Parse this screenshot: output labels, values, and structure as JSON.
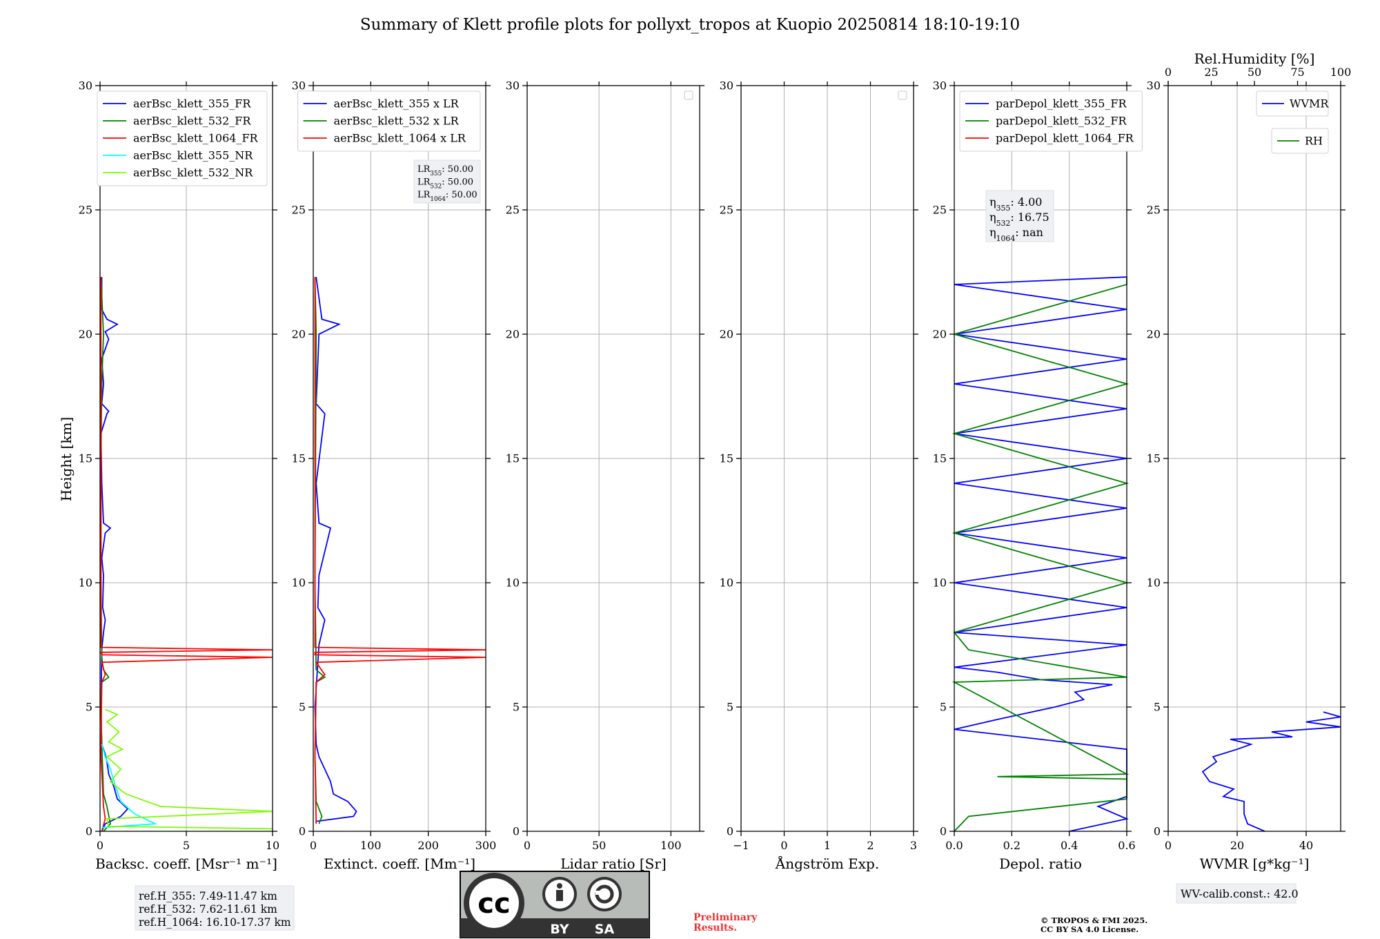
{
  "figure": {
    "title": "Summary of Klett profile plots for pollyxt_tropos at Kuopio 20250814 18:10-19:10",
    "ylabel": "Height [km]",
    "ref_heights": [
      "ref.H_355: 7.49-11.47 km",
      "ref.H_532: 7.62-11.61 km",
      "ref.H_1064: 16.10-17.37 km"
    ],
    "license_badge": {
      "left": "BY",
      "right": "SA"
    },
    "preliminary": [
      "Preliminary",
      "Results."
    ],
    "copyright": [
      "© TROPOS & FMI 2025.",
      "CC BY SA 4.0 License."
    ],
    "wv_calib": "WV-calib.const.: 42.0",
    "colors": {
      "c355": "#0000ff",
      "c532": "#008000",
      "c1064": "#ff0000",
      "c355nr": "#00ffff",
      "c532nr": "#7cfc00",
      "rh": "#008000"
    }
  },
  "chart_data": [
    {
      "type": "line",
      "id": "backscatter",
      "xlabel": "Backsc. coeff. [Msr⁻¹ m⁻¹]",
      "xlim": [
        0,
        10
      ],
      "xticks": [
        0,
        5,
        10
      ],
      "ylim": [
        0,
        30
      ],
      "yticks": [
        0,
        5,
        10,
        15,
        20,
        25,
        30
      ],
      "grid": true,
      "legend": "upper-right",
      "series": [
        {
          "name": "aerBsc_klett_355_FR",
          "color": "#0000ff",
          "points": [
            [
              0.1,
              0.0
            ],
            [
              0.3,
              0.3
            ],
            [
              1.2,
              0.6
            ],
            [
              1.6,
              0.9
            ],
            [
              1.0,
              1.3
            ],
            [
              0.8,
              1.8
            ],
            [
              0.5,
              2.3
            ],
            [
              0.4,
              2.8
            ],
            [
              0.3,
              3.1
            ],
            [
              0.1,
              3.5
            ],
            [
              0.05,
              5
            ],
            [
              0.1,
              7.3
            ],
            [
              0.2,
              8
            ],
            [
              0.3,
              8.5
            ],
            [
              0.15,
              9
            ],
            [
              0.2,
              10.3
            ],
            [
              0.1,
              11
            ],
            [
              0.3,
              12
            ],
            [
              0.6,
              12.2
            ],
            [
              0.2,
              12.4
            ],
            [
              0.1,
              14
            ],
            [
              0.05,
              16
            ],
            [
              0.4,
              16.8
            ],
            [
              0.5,
              16.9
            ],
            [
              0.1,
              17.2
            ],
            [
              0.2,
              18
            ],
            [
              0.1,
              19
            ],
            [
              0.5,
              19.8
            ],
            [
              0.3,
              20.1
            ],
            [
              1.0,
              20.4
            ],
            [
              0.4,
              20.6
            ],
            [
              0.1,
              21
            ],
            [
              0.1,
              22.3
            ]
          ]
        },
        {
          "name": "aerBsc_klett_532_FR",
          "color": "#008000",
          "points": [
            [
              0.2,
              0.0
            ],
            [
              0.6,
              0.3
            ],
            [
              0.4,
              1.0
            ],
            [
              0.2,
              1.5
            ],
            [
              0.15,
              2.5
            ],
            [
              0.1,
              3.5
            ],
            [
              0.05,
              5
            ],
            [
              0.1,
              6
            ],
            [
              0.5,
              6.2
            ],
            [
              0.2,
              6.5
            ],
            [
              0.1,
              7.0
            ],
            [
              0.05,
              10
            ],
            [
              0.05,
              15
            ],
            [
              0.1,
              18
            ],
            [
              0.2,
              20
            ],
            [
              0.05,
              22.3
            ]
          ]
        },
        {
          "name": "aerBsc_klett_1064_FR",
          "color": "#ff0000",
          "points": [
            [
              0.1,
              0.0
            ],
            [
              0.3,
              0.5
            ],
            [
              0.2,
              1.0
            ],
            [
              0.05,
              3
            ],
            [
              0.1,
              6.0
            ],
            [
              0.3,
              6.3
            ],
            [
              0.1,
              6.8
            ],
            [
              10,
              7.0
            ],
            [
              0.1,
              7.1
            ],
            [
              0.05,
              7.2
            ],
            [
              10,
              7.3
            ],
            [
              0.05,
              7.4
            ],
            [
              0.05,
              12
            ],
            [
              0.05,
              22.3
            ]
          ]
        },
        {
          "name": "aerBsc_klett_355_NR",
          "color": "#00ffff",
          "points": [
            [
              0.1,
              0.15
            ],
            [
              3.2,
              0.3
            ],
            [
              2.0,
              0.7
            ],
            [
              1.2,
              1.2
            ],
            [
              0.9,
              1.8
            ],
            [
              0.6,
              2.5
            ],
            [
              0.3,
              3.0
            ],
            [
              0.1,
              3.5
            ]
          ]
        },
        {
          "name": "aerBsc_klett_532_NR",
          "color": "#7cfc00",
          "points": [
            [
              10,
              0.1
            ],
            [
              0.5,
              0.2
            ],
            [
              0.4,
              0.5
            ],
            [
              10,
              0.8
            ],
            [
              3.5,
              1.0
            ],
            [
              1.5,
              1.5
            ],
            [
              0.6,
              2.0
            ],
            [
              1.2,
              2.5
            ],
            [
              0.4,
              3.0
            ],
            [
              1.3,
              3.3
            ],
            [
              0.5,
              3.6
            ],
            [
              1.1,
              4.0
            ],
            [
              0.4,
              4.4
            ],
            [
              1.0,
              4.7
            ],
            [
              0.3,
              4.9
            ]
          ]
        }
      ]
    },
    {
      "type": "line",
      "id": "extinction",
      "xlabel": "Extinct. coeff. [Mm⁻¹]",
      "xlim": [
        0,
        300
      ],
      "xticks": [
        0,
        100,
        200,
        300
      ],
      "ylim": [
        0,
        30
      ],
      "yticks": [
        0,
        5,
        10,
        15,
        20,
        25,
        30
      ],
      "grid": true,
      "legend": "upper-right",
      "annotation": [
        "LR355: 50.00",
        "LR532: 50.00",
        "LR1064: 50.00"
      ],
      "series": [
        {
          "name": "aerBsc_klett_355 x LR",
          "color": "#0000ff",
          "points": [
            [
              5,
              0.4
            ],
            [
              70,
              0.6
            ],
            [
              75,
              0.8
            ],
            [
              60,
              1.2
            ],
            [
              35,
              1.5
            ],
            [
              30,
              2.0
            ],
            [
              20,
              2.5
            ],
            [
              10,
              3.0
            ],
            [
              5,
              3.5
            ],
            [
              3,
              5
            ],
            [
              10,
              7.5
            ],
            [
              20,
              8.5
            ],
            [
              8,
              9
            ],
            [
              10,
              10.3
            ],
            [
              30,
              12.2
            ],
            [
              10,
              12.4
            ],
            [
              5,
              14
            ],
            [
              20,
              16.8
            ],
            [
              5,
              17.2
            ],
            [
              10,
              20
            ],
            [
              45,
              20.4
            ],
            [
              15,
              20.6
            ],
            [
              5,
              22.3
            ]
          ]
        },
        {
          "name": "aerBsc_klett_532 x LR",
          "color": "#008000",
          "points": [
            [
              10,
              0.3
            ],
            [
              15,
              0.6
            ],
            [
              5,
              1.2
            ],
            [
              3,
              3
            ],
            [
              5,
              6
            ],
            [
              20,
              6.2
            ],
            [
              5,
              6.5
            ],
            [
              3,
              10
            ],
            [
              5,
              20
            ],
            [
              3,
              22.3
            ]
          ]
        },
        {
          "name": "aerBsc_klett_1064 x LR",
          "color": "#ff0000",
          "points": [
            [
              5,
              0.3
            ],
            [
              3,
              3
            ],
            [
              5,
              6
            ],
            [
              20,
              6.3
            ],
            [
              5,
              6.8
            ],
            [
              300,
              7.0
            ],
            [
              3,
              7.1
            ],
            [
              3,
              7.2
            ],
            [
              300,
              7.3
            ],
            [
              3,
              7.4
            ],
            [
              3,
              22.3
            ]
          ]
        }
      ]
    },
    {
      "type": "line",
      "id": "lidar-ratio",
      "xlabel": "Lidar ratio [Sr]",
      "xlim": [
        0,
        120
      ],
      "xticks": [
        0,
        50,
        100
      ],
      "ylim": [
        0,
        30
      ],
      "yticks": [
        0,
        5,
        10,
        15,
        20,
        25,
        30
      ],
      "grid": true,
      "legend": "upper-right",
      "series": []
    },
    {
      "type": "line",
      "id": "angstrom",
      "xlabel": "Ångström Exp.",
      "xlim": [
        -1,
        3
      ],
      "xticks": [
        -1,
        0,
        1,
        2,
        3
      ],
      "ylim": [
        0,
        30
      ],
      "yticks": [
        0,
        5,
        10,
        15,
        20,
        25,
        30
      ],
      "grid": true,
      "legend": "upper-right",
      "series": []
    },
    {
      "type": "line",
      "id": "depol",
      "xlabel": "Depol. ratio",
      "xlim": [
        0,
        0.6
      ],
      "xticks": [
        "0.0",
        "0.2",
        "0.4",
        "0.6"
      ],
      "ylim": [
        0,
        30
      ],
      "yticks": [
        0,
        5,
        10,
        15,
        20,
        25,
        30
      ],
      "grid": true,
      "legend": "upper-left",
      "annotation": [
        "η355: 4.00",
        "η532: 16.75",
        "η1064: nan"
      ],
      "series": [
        {
          "name": "parDepol_klett_355_FR",
          "color": "#0000ff",
          "points": [
            [
              0.4,
              0.0
            ],
            [
              0.6,
              0.5
            ],
            [
              0.5,
              1.0
            ],
            [
              0.6,
              1.4
            ],
            [
              0.6,
              2.5
            ],
            [
              0.6,
              3.3
            ],
            [
              0.0,
              4.1
            ],
            [
              0.15,
              4.5
            ],
            [
              0.35,
              5.0
            ],
            [
              0.45,
              5.3
            ],
            [
              0.42,
              5.6
            ],
            [
              0.55,
              5.9
            ],
            [
              0.3,
              6.1
            ],
            [
              0.15,
              6.4
            ],
            [
              0.0,
              6.6
            ],
            [
              0.6,
              7.5
            ],
            [
              0.0,
              8.0
            ],
            [
              0.6,
              9.0
            ],
            [
              0.0,
              10.0
            ],
            [
              0.6,
              11.0
            ],
            [
              0.0,
              12.0
            ],
            [
              0.6,
              13.0
            ],
            [
              0.0,
              14.0
            ],
            [
              0.6,
              15.0
            ],
            [
              0.0,
              16.0
            ],
            [
              0.6,
              17.0
            ],
            [
              0.0,
              18.0
            ],
            [
              0.6,
              19.0
            ],
            [
              0.0,
              20.0
            ],
            [
              0.6,
              21.0
            ],
            [
              0.0,
              22.0
            ],
            [
              0.6,
              22.3
            ]
          ]
        },
        {
          "name": "parDepol_klett_532_FR",
          "color": "#008000",
          "points": [
            [
              0.0,
              0.0
            ],
            [
              0.05,
              0.6
            ],
            [
              0.6,
              1.3
            ],
            [
              0.6,
              2.1
            ],
            [
              0.15,
              2.2
            ],
            [
              0.6,
              2.3
            ],
            [
              0.0,
              6.0
            ],
            [
              0.6,
              6.2
            ],
            [
              0.05,
              7.3
            ],
            [
              0.0,
              8.0
            ],
            [
              0.6,
              10.0
            ],
            [
              0.0,
              12.0
            ],
            [
              0.6,
              14.0
            ],
            [
              0.0,
              16.0
            ],
            [
              0.6,
              18.0
            ],
            [
              0.0,
              20.0
            ],
            [
              0.6,
              22.0
            ],
            [
              0.6,
              22.3
            ]
          ]
        },
        {
          "name": "parDepol_klett_1064_FR",
          "color": "#ff0000",
          "points": []
        }
      ]
    },
    {
      "type": "line",
      "id": "wvmr",
      "xlabel": "WVMR [g*kg⁻¹]",
      "xlim": [
        0,
        50
      ],
      "xticks": [
        0,
        20,
        40
      ],
      "x2label": "Rel.Humidity [%]",
      "x2lim": [
        0,
        100
      ],
      "x2ticks": [
        0,
        25,
        50,
        75,
        100
      ],
      "ylim": [
        0,
        30
      ],
      "yticks": [
        0,
        5,
        10,
        15,
        20,
        25,
        30
      ],
      "grid": true,
      "legend": "upper-right",
      "series": [
        {
          "name": "WVMR",
          "color": "#0000ff",
          "points": [
            [
              28,
              0.0
            ],
            [
              23,
              0.3
            ],
            [
              22,
              0.7
            ],
            [
              22,
              1.2
            ],
            [
              16,
              1.4
            ],
            [
              19,
              1.7
            ],
            [
              12,
              2.0
            ],
            [
              10,
              2.4
            ],
            [
              14,
              2.8
            ],
            [
              13,
              3.0
            ],
            [
              20,
              3.3
            ],
            [
              24,
              3.5
            ],
            [
              18,
              3.7
            ],
            [
              36,
              3.8
            ],
            [
              30,
              4.0
            ],
            [
              50,
              4.2
            ],
            [
              40,
              4.4
            ],
            [
              50,
              4.6
            ],
            [
              45,
              4.8
            ]
          ]
        },
        {
          "name": "RH",
          "color": "#008000",
          "points": []
        }
      ]
    }
  ]
}
